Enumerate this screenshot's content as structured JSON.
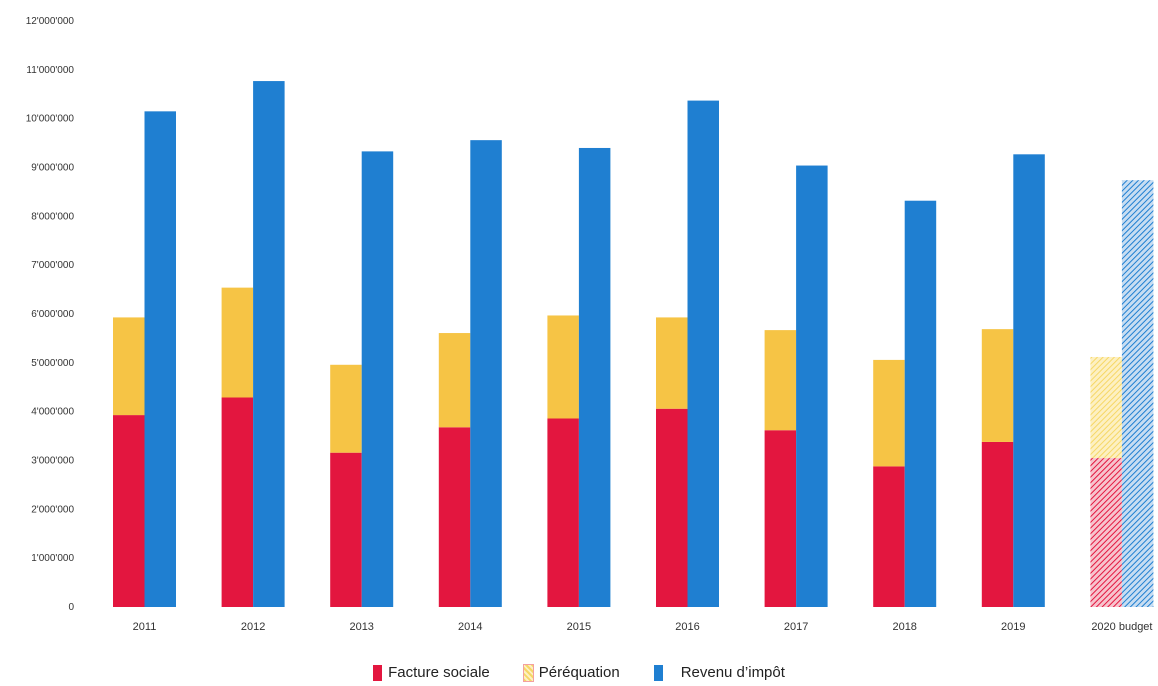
{
  "chart_data": {
    "type": "bar",
    "stacked_first_bar": true,
    "categories": [
      "2011",
      "2012",
      "2013",
      "2014",
      "2015",
      "2016",
      "2017",
      "2018",
      "2019",
      "2020 budget"
    ],
    "series": [
      {
        "name": "Facture sociale",
        "color": "#e3163f",
        "values": [
          3930000,
          4290000,
          3160000,
          3680000,
          3860000,
          4060000,
          3620000,
          2880000,
          3380000,
          3050000
        ]
      },
      {
        "name": "Péréquation",
        "color": "#f6c445",
        "values": [
          2000000,
          2250000,
          1800000,
          1930000,
          2110000,
          1870000,
          2050000,
          2180000,
          2310000,
          2070000
        ]
      },
      {
        "name": "Revenu d’impôt",
        "color": "#1f7fd1",
        "values": [
          10150000,
          10770000,
          9330000,
          9560000,
          9400000,
          10370000,
          9040000,
          8320000,
          9270000,
          8740000
        ]
      }
    ],
    "hatched_category": "2020 budget",
    "ylim": [
      0,
      12000000
    ],
    "y_ticks": [
      "0",
      "1'000'000",
      "2'000'000",
      "3'000'000",
      "4'000'000",
      "5'000'000",
      "6'000'000",
      "7'000'000",
      "8'000'000",
      "9'000'000",
      "10'000'000",
      "11'000'000",
      "12'000'000"
    ],
    "grid": false,
    "legend_position": "bottom"
  }
}
